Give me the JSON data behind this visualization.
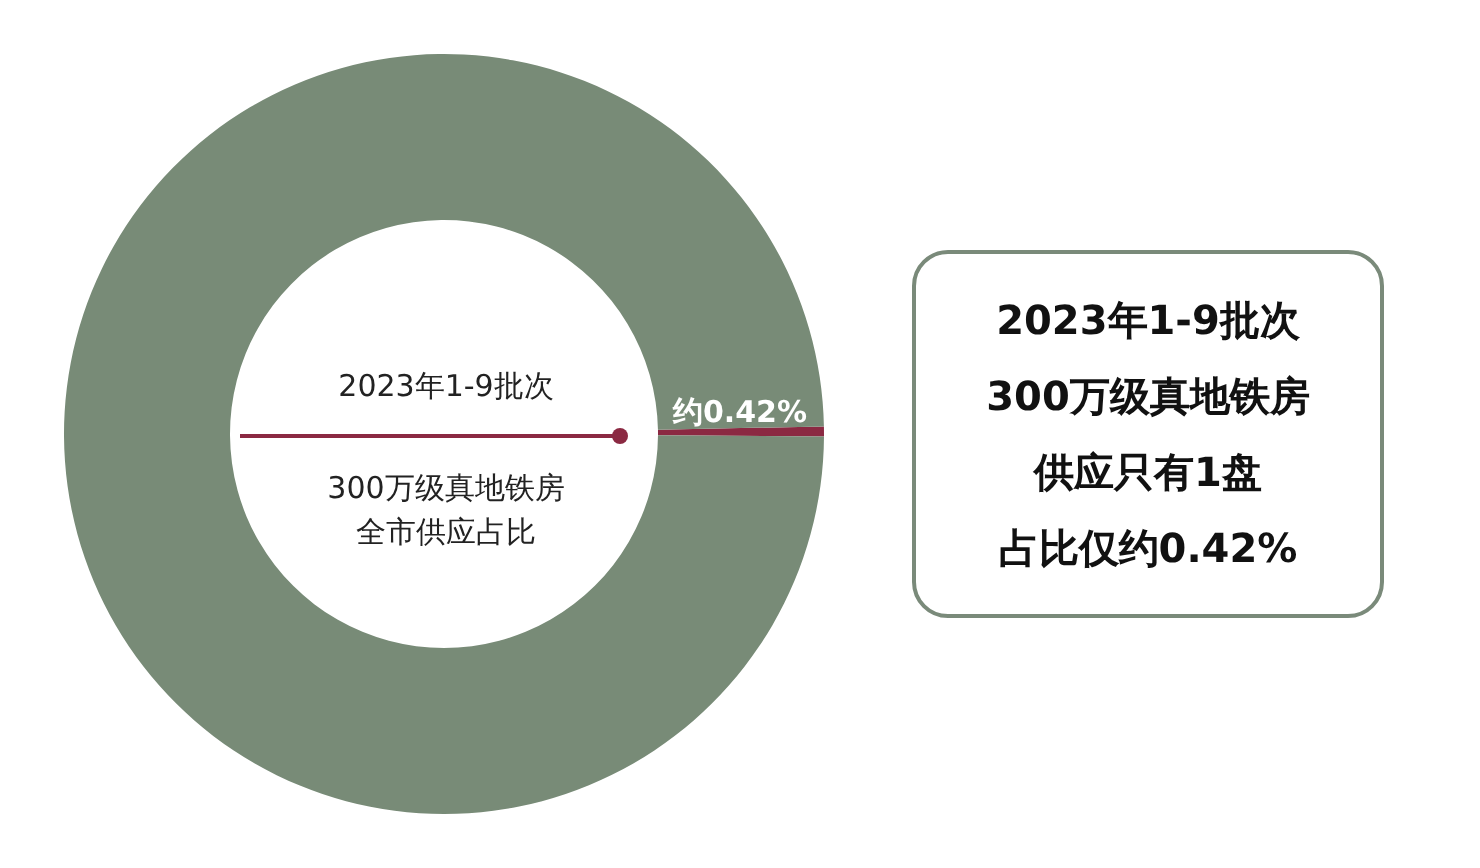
{
  "chart_data": {
    "type": "donut",
    "categories": [
      null,
      null
    ],
    "values": [
      0.42,
      99.58
    ],
    "colors": [
      "#8b2942",
      "#788b77"
    ],
    "value_labels": [
      "约0.42%",
      null
    ],
    "annotations": [
      "2023年1-9批次",
      "300万级真地铁房",
      "全市供应占比",
      "2023年1-9批次",
      "300万级真地铁房",
      "供应只有1盘",
      "占比仅约0.42%"
    ]
  }
}
